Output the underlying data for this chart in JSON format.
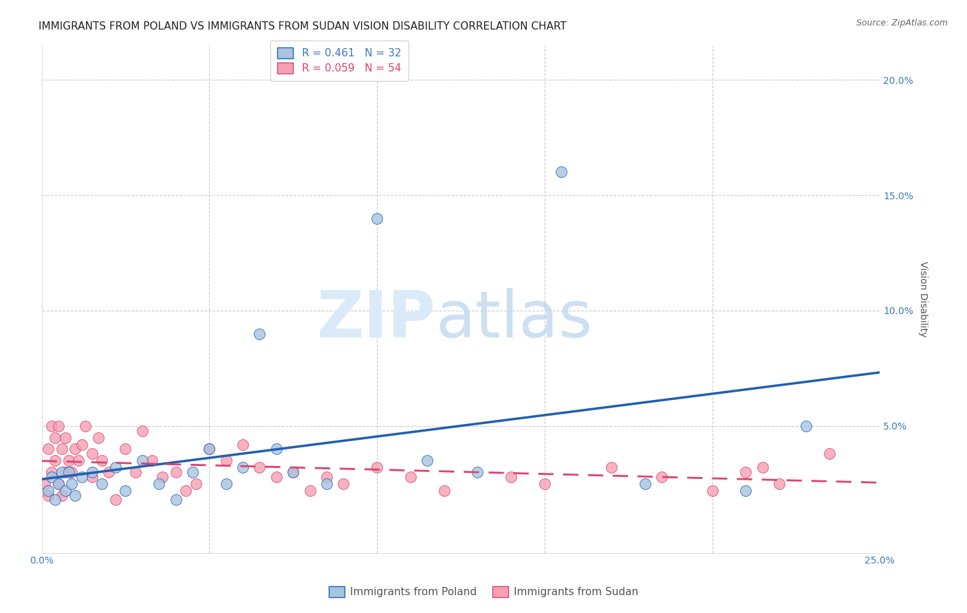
{
  "title": "IMMIGRANTS FROM POLAND VS IMMIGRANTS FROM SUDAN VISION DISABILITY CORRELATION CHART",
  "source": "Source: ZipAtlas.com",
  "ylabel": "Vision Disability",
  "xlim": [
    0.0,
    0.25
  ],
  "ylim": [
    -0.005,
    0.215
  ],
  "poland_R": 0.461,
  "poland_N": 32,
  "sudan_R": 0.059,
  "sudan_N": 54,
  "poland_color": "#a8c4e0",
  "poland_line_color": "#2060b0",
  "sudan_color": "#f4a0b5",
  "sudan_line_color": "#e04070",
  "background_color": "#ffffff",
  "poland_scatter_x": [
    0.002,
    0.003,
    0.004,
    0.005,
    0.006,
    0.007,
    0.008,
    0.009,
    0.01,
    0.012,
    0.015,
    0.018,
    0.022,
    0.025,
    0.03,
    0.035,
    0.04,
    0.045,
    0.05,
    0.055,
    0.06,
    0.065,
    0.07,
    0.075,
    0.085,
    0.1,
    0.115,
    0.13,
    0.155,
    0.18,
    0.21,
    0.228
  ],
  "poland_scatter_y": [
    0.022,
    0.028,
    0.018,
    0.025,
    0.03,
    0.022,
    0.03,
    0.025,
    0.02,
    0.028,
    0.03,
    0.025,
    0.032,
    0.022,
    0.035,
    0.025,
    0.018,
    0.03,
    0.04,
    0.025,
    0.032,
    0.09,
    0.04,
    0.03,
    0.025,
    0.14,
    0.035,
    0.03,
    0.16,
    0.025,
    0.022,
    0.05
  ],
  "sudan_scatter_x": [
    0.001,
    0.002,
    0.002,
    0.003,
    0.003,
    0.004,
    0.004,
    0.005,
    0.005,
    0.006,
    0.006,
    0.007,
    0.007,
    0.008,
    0.009,
    0.01,
    0.011,
    0.012,
    0.013,
    0.015,
    0.015,
    0.017,
    0.018,
    0.02,
    0.022,
    0.025,
    0.028,
    0.03,
    0.033,
    0.036,
    0.04,
    0.043,
    0.046,
    0.05,
    0.055,
    0.06,
    0.065,
    0.07,
    0.075,
    0.08,
    0.085,
    0.09,
    0.1,
    0.11,
    0.12,
    0.14,
    0.15,
    0.17,
    0.185,
    0.2,
    0.21,
    0.215,
    0.22,
    0.235
  ],
  "sudan_scatter_y": [
    0.025,
    0.04,
    0.02,
    0.05,
    0.03,
    0.035,
    0.045,
    0.05,
    0.025,
    0.04,
    0.02,
    0.045,
    0.03,
    0.035,
    0.03,
    0.04,
    0.035,
    0.042,
    0.05,
    0.038,
    0.028,
    0.045,
    0.035,
    0.03,
    0.018,
    0.04,
    0.03,
    0.048,
    0.035,
    0.028,
    0.03,
    0.022,
    0.025,
    0.04,
    0.035,
    0.042,
    0.032,
    0.028,
    0.03,
    0.022,
    0.028,
    0.025,
    0.032,
    0.028,
    0.022,
    0.028,
    0.025,
    0.032,
    0.028,
    0.022,
    0.03,
    0.032,
    0.025,
    0.038
  ],
  "title_fontsize": 11,
  "axis_label_fontsize": 10,
  "tick_fontsize": 10,
  "legend_fontsize": 11
}
